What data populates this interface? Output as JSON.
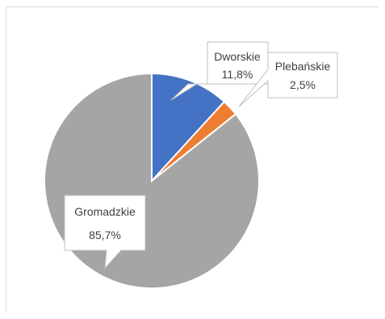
{
  "chart_data": {
    "type": "pie",
    "categories": [
      "Dworskie",
      "Plebańskie",
      "Gromadzkie"
    ],
    "values": [
      11.8,
      2.5,
      85.7
    ],
    "labels": [
      "11,8%",
      "2,5%",
      "85,7%"
    ],
    "colors": [
      "#4472c4",
      "#ed7d31",
      "#a5a5a5"
    ],
    "title": "",
    "legend": "none"
  }
}
